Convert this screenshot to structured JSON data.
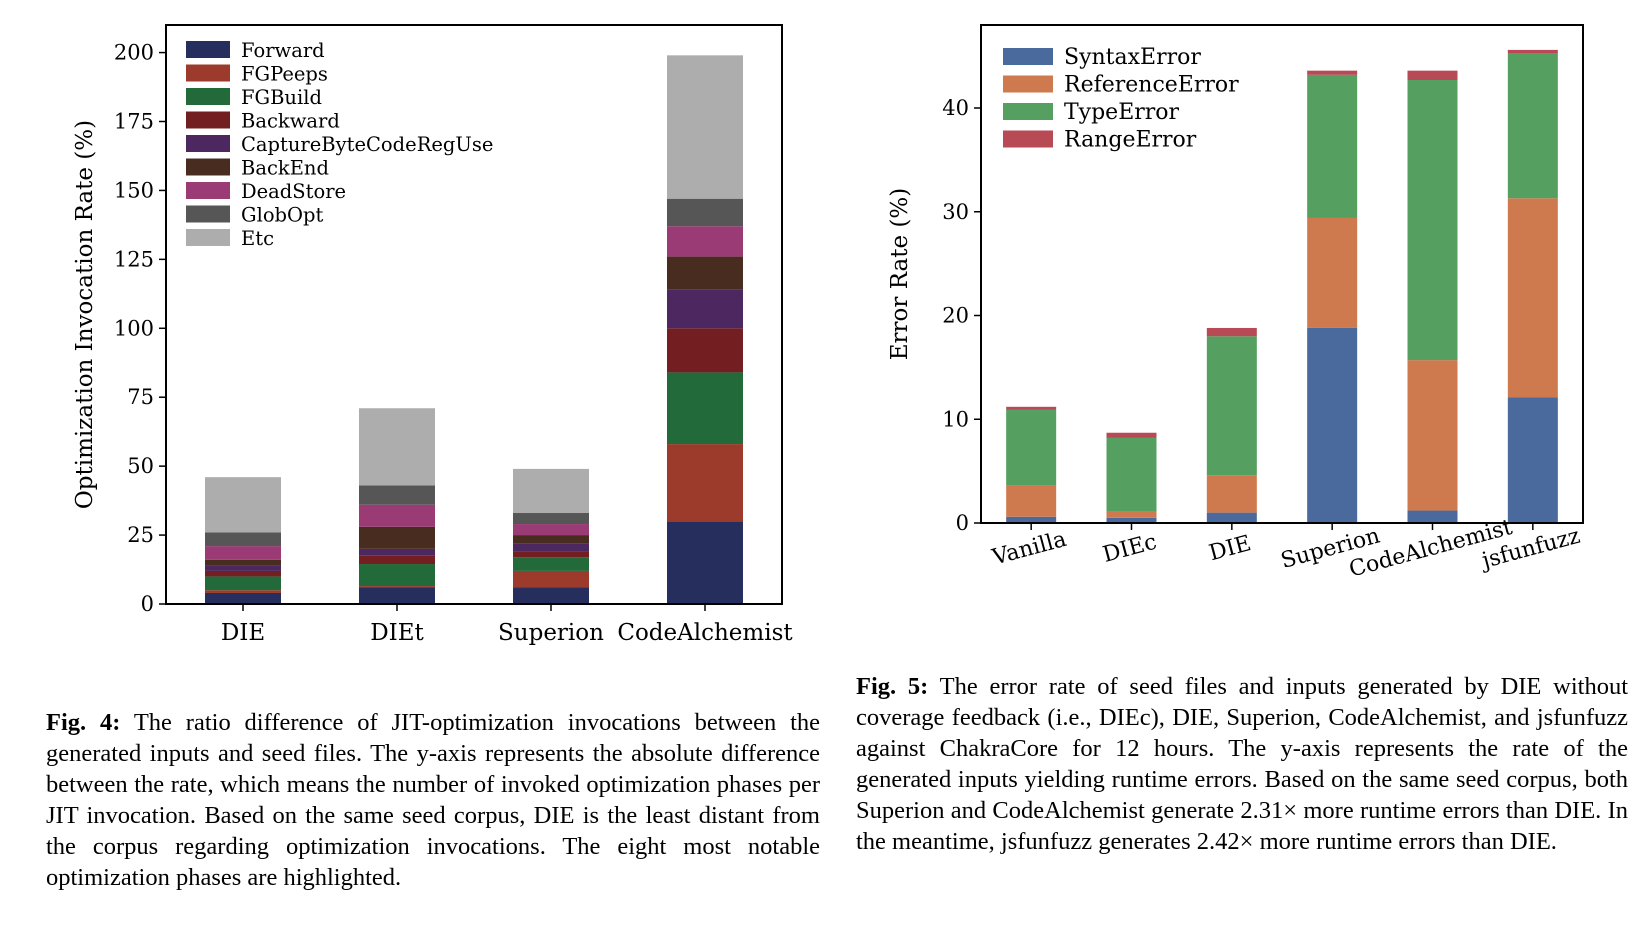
{
  "chart_data": [
    {
      "type": "bar",
      "stacked": true,
      "ylabel": "Optimization Invocation Rate (%)",
      "ylim": [
        0,
        210
      ],
      "yticks": [
        "0",
        "25",
        "50",
        "75",
        "100",
        "125",
        "150",
        "175",
        "200"
      ],
      "categories": [
        "DIE",
        "DIEt",
        "Superion",
        "CodeAlchemist"
      ],
      "legend_position": "top-left",
      "series": [
        {
          "name": "Forward",
          "color": "#262e5e",
          "values": [
            4,
            6,
            6,
            30
          ]
        },
        {
          "name": "FGPeeps",
          "color": "#9c3b2b",
          "values": [
            1,
            0.5,
            6,
            28
          ]
        },
        {
          "name": "FGBuild",
          "color": "#236a3a",
          "values": [
            5,
            8,
            5,
            26
          ]
        },
        {
          "name": "Backward",
          "color": "#731f22",
          "values": [
            2,
            3,
            2,
            16
          ]
        },
        {
          "name": "CaptureByteCodeRegUse",
          "color": "#4c2760",
          "values": [
            2,
            2.5,
            3,
            14
          ]
        },
        {
          "name": "BackEnd",
          "color": "#482c20",
          "values": [
            2,
            8,
            3,
            12
          ]
        },
        {
          "name": "DeadStore",
          "color": "#9a3b76",
          "values": [
            5,
            8,
            4,
            11
          ]
        },
        {
          "name": "GlobOpt",
          "color": "#565656",
          "values": [
            5,
            7,
            4,
            10
          ]
        },
        {
          "name": "Etc",
          "color": "#adadad",
          "values": [
            20,
            28,
            16,
            52
          ]
        }
      ]
    },
    {
      "type": "bar",
      "stacked": true,
      "ylabel": "Error Rate (%)",
      "ylim": [
        0,
        48
      ],
      "yticks": [
        "0",
        "10",
        "20",
        "30",
        "40"
      ],
      "categories": [
        "Vanilla",
        "DIEc",
        "DIE",
        "Superion",
        "CodeAlchemist",
        "jsfunfuzz"
      ],
      "legend_position": "top-left",
      "series": [
        {
          "name": "SyntaxError",
          "color": "#4a6a9e",
          "values": [
            0.6,
            0.5,
            1.0,
            18.8,
            1.2,
            12.1
          ]
        },
        {
          "name": "ReferenceError",
          "color": "#cf7a4e",
          "values": [
            3.0,
            0.6,
            3.6,
            10.6,
            14.5,
            19.2
          ]
        },
        {
          "name": "TypeError",
          "color": "#55a061",
          "values": [
            7.3,
            7.1,
            13.4,
            13.8,
            27.0,
            14.0
          ]
        },
        {
          "name": "RangeError",
          "color": "#b84a55",
          "values": [
            0.3,
            0.5,
            0.8,
            0.4,
            0.9,
            0.3
          ]
        }
      ]
    }
  ],
  "captions": {
    "fig4": {
      "label": "Fig. 4:",
      "text": "The ratio difference of JIT-optimization invocations between the generated inputs and seed files. The y-axis represents the absolute difference between the rate, which means the number of invoked optimization phases per JIT invocation. Based on the same seed corpus, DIE is the least distant from the corpus regarding optimization invocations. The eight most notable optimization phases are highlighted."
    },
    "fig5": {
      "label": "Fig. 5:",
      "text": "The error rate of seed files and inputs generated by DIE without coverage feedback (i.e., DIEc), DIE, Superion, CodeAlchemist, and jsfunfuzz against ChakraCore for 12 hours. The y-axis represents the rate of the generated inputs yielding runtime errors. Based on the same seed corpus, both Superion and CodeAlchemist generate 2.31× more runtime errors than DIE. In the meantime, jsfunfuzz generates 2.42× more runtime errors than DIE."
    }
  }
}
